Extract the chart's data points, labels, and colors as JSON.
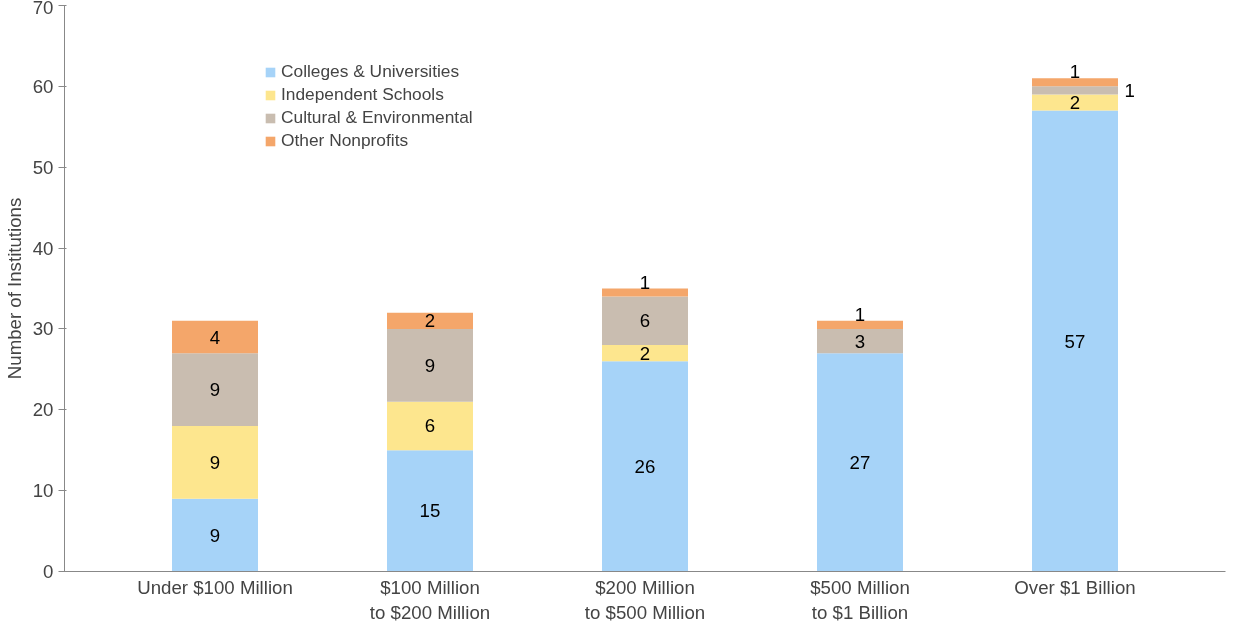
{
  "chart_data": {
    "type": "bar",
    "stacked": true,
    "ylabel": "Number of Institutions",
    "categories": [
      "Under $100 Million",
      "$100 Million\nto $200 Million",
      "$200 Million\nto $500 Million",
      "$500 Million\nto $1 Billion",
      "Over $1 Billion"
    ],
    "series": [
      {
        "name": "Colleges & Universities",
        "color": "#a6d3f8",
        "values": [
          9,
          15,
          26,
          27,
          57
        ],
        "value_labels": [
          "9",
          "15",
          "26",
          "27",
          "57"
        ]
      },
      {
        "name": "Independent Schools",
        "color": "#fde68e",
        "values": [
          9,
          6,
          2,
          0,
          2
        ],
        "value_labels": [
          "9",
          "6",
          "2",
          null,
          "2"
        ]
      },
      {
        "name": "Cultural & Environmental",
        "color": "#c9bdb0",
        "values": [
          9,
          9,
          6,
          3,
          1
        ],
        "value_labels": [
          "9",
          "9",
          "6",
          "3",
          "1"
        ]
      },
      {
        "name": "Other Nonprofits",
        "color": "#f4a66a",
        "values": [
          4,
          2,
          1,
          1,
          1
        ],
        "value_labels": [
          "4",
          "2",
          "1",
          "1",
          "1"
        ]
      }
    ],
    "ylim": [
      0,
      70
    ],
    "yticks": [
      0,
      10,
      20,
      30,
      40,
      50,
      60,
      70
    ],
    "grid": false,
    "legend": "top left"
  }
}
